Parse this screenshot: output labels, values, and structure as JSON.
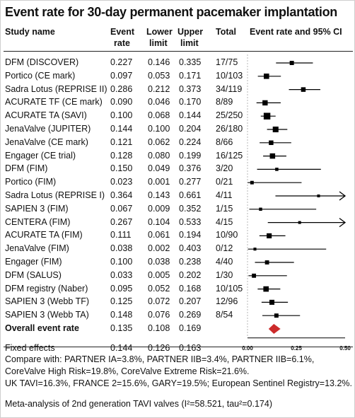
{
  "title": "Event rate for 30-day permanent pacemaker implantation",
  "headers": {
    "study": "Study name",
    "event_rate_1": "Event",
    "event_rate_2": "rate",
    "lower_1": "Lower",
    "lower_2": "limit",
    "upper_1": "Upper",
    "upper_2": "limit",
    "total": "Total",
    "plot": "Event rate and 95% CI"
  },
  "chart_data": {
    "type": "forest",
    "xlim": [
      0,
      0.5
    ],
    "x_ticks": [
      "0.00",
      "0.25",
      "0.50"
    ],
    "rows": [
      {
        "study": "DFM (DISCOVER)",
        "rate": "0.227",
        "lower": "0.146",
        "upper": "0.335",
        "total": "17/75"
      },
      {
        "study": "Portico (CE mark)",
        "rate": "0.097",
        "lower": "0.053",
        "upper": "0.171",
        "total": "10/103"
      },
      {
        "study": "Sadra Lotus (REPRISE II)",
        "rate": "0.286",
        "lower": "0.212",
        "upper": "0.373",
        "total": "34/119"
      },
      {
        "study": "ACURATE TF (CE mark)",
        "rate": "0.090",
        "lower": "0.046",
        "upper": "0.170",
        "total": "8/89"
      },
      {
        "study": "ACURATE TA (SAVI)",
        "rate": "0.100",
        "lower": "0.068",
        "upper": "0.144",
        "total": "25/250"
      },
      {
        "study": "JenaValve (JUPITER)",
        "rate": "0.144",
        "lower": "0.100",
        "upper": "0.204",
        "total": "26/180"
      },
      {
        "study": "JenaValve (CE mark)",
        "rate": "0.121",
        "lower": "0.062",
        "upper": "0.224",
        "total": "8/66"
      },
      {
        "study": "Engager (CE trial)",
        "rate": "0.128",
        "lower": "0.080",
        "upper": "0.199",
        "total": "16/125"
      },
      {
        "study": "DFM (FIM)",
        "rate": "0.150",
        "lower": "0.049",
        "upper": "0.376",
        "total": "3/20"
      },
      {
        "study": "Portico (FIM)",
        "rate": "0.023",
        "lower": "0.001",
        "upper": "0.277",
        "total": "0/21"
      },
      {
        "study": "Sadra Lotus (REPRISE I)",
        "rate": "0.364",
        "lower": "0.143",
        "upper": "0.661",
        "total": "4/11"
      },
      {
        "study": "SAPIEN 3 (FIM)",
        "rate": "0.067",
        "lower": "0.009",
        "upper": "0.352",
        "total": "1/15"
      },
      {
        "study": "CENTERA (FIM)",
        "rate": "0.267",
        "lower": "0.104",
        "upper": "0.533",
        "total": "4/15"
      },
      {
        "study": "ACURATE TA (FIM)",
        "rate": "0.111",
        "lower": "0.061",
        "upper": "0.194",
        "total": "10/90"
      },
      {
        "study": "JenaValve (FIM)",
        "rate": "0.038",
        "lower": "0.002",
        "upper": "0.403",
        "total": "0/12"
      },
      {
        "study": "Engager (FIM)",
        "rate": "0.100",
        "lower": "0.038",
        "upper": "0.238",
        "total": "4/40"
      },
      {
        "study": "DFM (SALUS)",
        "rate": "0.033",
        "lower": "0.005",
        "upper": "0.202",
        "total": "1/30"
      },
      {
        "study": "DFM registry (Naber)",
        "rate": "0.095",
        "lower": "0.052",
        "upper": "0.168",
        "total": "10/105"
      },
      {
        "study": "SAPIEN 3 (Webb TF)",
        "rate": "0.125",
        "lower": "0.072",
        "upper": "0.207",
        "total": "12/96"
      },
      {
        "study": "SAPIEN 3 (Webb TA)",
        "rate": "0.148",
        "lower": "0.076",
        "upper": "0.269",
        "total": "8/54"
      }
    ],
    "overall": {
      "study": "Overall event rate",
      "rate": "0.135",
      "lower": "0.108",
      "upper": "0.169",
      "total": ""
    },
    "fixed": {
      "study": "Fixed effects",
      "rate": "0.144",
      "lower": "0.126",
      "upper": "0.163",
      "total": ""
    },
    "marker_color": "#000000",
    "diamond_color": "#cc2b2b"
  },
  "footer": {
    "compare_1": "Compare with: PARTNER IA=3.8%, PARTNER IIB=3.4%, PARTNER IIB=6.1%,",
    "compare_2": "CoreValve High Risk=19.8%, CoreValve Extreme Risk=21.6%.",
    "compare_3": "UK TAVI=16.3%, FRANCE 2=15.6%, GARY=19.5%; European Sentinel Registry=13.2%.",
    "caption": "Meta-analysis of 2nd generation TAVI valves (I²=58.521, tau²=0.174)"
  }
}
